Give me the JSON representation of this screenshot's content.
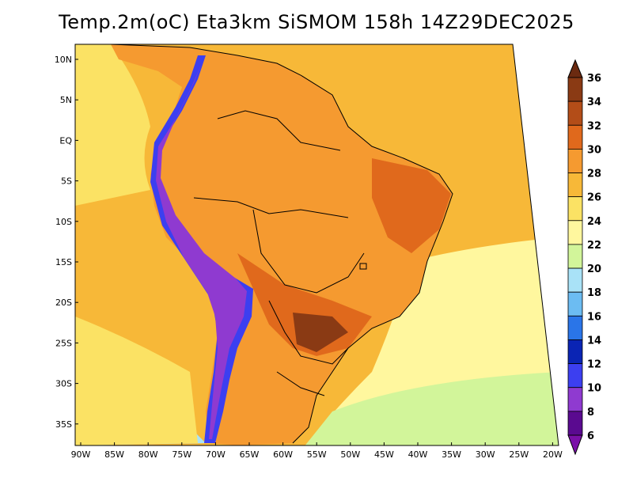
{
  "title": "Temp.2m(oC) Eta3km SiSMOM 158h 14Z29DEC2025",
  "lat_labels": [
    "10N",
    "5N",
    "EQ",
    "5S",
    "10S",
    "15S",
    "20S",
    "25S",
    "30S",
    "35S"
  ],
  "lon_labels": [
    "90W",
    "85W",
    "80W",
    "75W",
    "70W",
    "65W",
    "60W",
    "55W",
    "50W",
    "45W",
    "40W",
    "35W",
    "30W",
    "25W",
    "20W"
  ],
  "colorbar": {
    "labels": [
      "36",
      "34",
      "32",
      "30",
      "28",
      "26",
      "24",
      "22",
      "20",
      "18",
      "16",
      "14",
      "12",
      "10",
      "8",
      "6"
    ],
    "colors": [
      "#6b2a10",
      "#8a3a14",
      "#b34d18",
      "#e0691c",
      "#f59a30",
      "#f7b838",
      "#fbe264",
      "#fff79e",
      "#d2f59a",
      "#a9e2f7",
      "#6cbcf2",
      "#2a75e8",
      "#0a24b4",
      "#3c3ff0",
      "#8f3ad0",
      "#5a0a90",
      "#7a10a8"
    ]
  },
  "map": {
    "colors": {
      "ocean_warm": "#f7b838",
      "ocean_mid": "#fbe264",
      "ocean_cool": "#fff79e",
      "ocean_cold": "#d2f59a",
      "ocean_coldest": "#a9e2f7",
      "land": "#f59a30",
      "land_hot": "#e0691c",
      "land_hottest": "#8a3a14",
      "andes": "#8f3ad0",
      "andes_edge": "#3c3ff0",
      "andes_glacier": "#6cbcf2"
    }
  }
}
